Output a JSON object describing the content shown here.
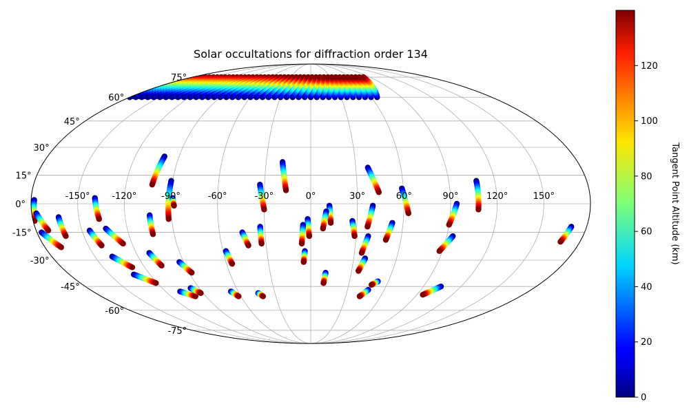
{
  "chart_data": {
    "type": "scatter",
    "projection": "mollweide",
    "title": "Solar occultations for diffraction order 134",
    "lon_ticks": [
      -150,
      -120,
      -90,
      -60,
      -30,
      0,
      30,
      60,
      90,
      120,
      150
    ],
    "lon_tick_labels": [
      "-150°",
      "-120°",
      "-90°",
      "-60°",
      "-30°",
      "0°",
      "30°",
      "60°",
      "90°",
      "120°",
      "150°"
    ],
    "lat_ticks": [
      -75,
      -60,
      -45,
      -30,
      -15,
      0,
      15,
      30,
      45,
      60,
      75
    ],
    "lat_tick_labels": [
      "-75°",
      "-60°",
      "-45°",
      "-30°",
      "-15°",
      "0°",
      "15°",
      "30°",
      "45°",
      "60°",
      "75°"
    ],
    "grid": true,
    "colorbar": {
      "label": "Tangent Point Altitude (km)",
      "colormap": "jet",
      "range": [
        0,
        140
      ],
      "ticks": [
        0,
        20,
        40,
        60,
        80,
        100,
        120
      ],
      "tick_labels": [
        "0",
        "20",
        "40",
        "60",
        "80",
        "100",
        "120"
      ]
    },
    "altitude_range_per_track_km": [
      0,
      140
    ],
    "tracks": [
      {
        "start": [
          -178,
          2
        ],
        "end": [
          -179,
          -9
        ]
      },
      {
        "start": [
          -177,
          -5
        ],
        "end": [
          -172,
          -14
        ]
      },
      {
        "start": [
          -177,
          -15
        ],
        "end": [
          -169,
          -23
        ]
      },
      {
        "start": [
          -163,
          -7
        ],
        "end": [
          -162,
          -17
        ]
      },
      {
        "start": [
          -139,
          3
        ],
        "end": [
          -137,
          -8
        ]
      },
      {
        "start": [
          -145,
          -14
        ],
        "end": [
          -141,
          -22
        ]
      },
      {
        "start": [
          -134,
          -13
        ],
        "end": [
          -126,
          -21
        ]
      },
      {
        "start": [
          -138,
          -28
        ],
        "end": [
          -129,
          -34
        ]
      },
      {
        "start": [
          -132,
          -38
        ],
        "end": [
          -121,
          -43
        ]
      },
      {
        "start": [
          -111,
          -26
        ],
        "end": [
          -107,
          -33
        ]
      },
      {
        "start": [
          -108,
          -48
        ],
        "end": [
          -99,
          -51
        ]
      },
      {
        "start": [
          -104,
          -6
        ],
        "end": [
          -104,
          -16
        ]
      },
      {
        "start": [
          -100,
          25
        ],
        "end": [
          -103,
          10
        ]
      },
      {
        "start": [
          -91,
          12
        ],
        "end": [
          -92,
          -8
        ]
      },
      {
        "start": [
          -89,
          3
        ],
        "end": [
          -88,
          -1
        ]
      },
      {
        "start": [
          -97,
          -46
        ],
        "end": [
          -92,
          -49
        ]
      },
      {
        "start": [
          -93,
          -31
        ],
        "end": [
          -88,
          -37
        ]
      },
      {
        "start": [
          -58,
          -25
        ],
        "end": [
          -56,
          -32
        ]
      },
      {
        "start": [
          -66,
          -48
        ],
        "end": [
          -62,
          -51
        ]
      },
      {
        "start": [
          -45,
          -15
        ],
        "end": [
          -42,
          -22
        ]
      },
      {
        "start": [
          -44,
          -49
        ],
        "end": [
          -41,
          -51
        ]
      },
      {
        "start": [
          -33,
          10
        ],
        "end": [
          -30,
          -3
        ]
      },
      {
        "start": [
          -33,
          -12
        ],
        "end": [
          -33,
          -21
        ]
      },
      {
        "start": [
          -19,
          22
        ],
        "end": [
          -16,
          7
        ]
      },
      {
        "start": [
          -2,
          -8
        ],
        "end": [
          -1,
          -17
        ]
      },
      {
        "start": [
          -5,
          -11
        ],
        "end": [
          -6,
          -21
        ]
      },
      {
        "start": [
          -4,
          -25
        ],
        "end": [
          -5,
          -31
        ]
      },
      {
        "start": [
          12,
          -1
        ],
        "end": [
          13,
          -10
        ]
      },
      {
        "start": [
          10,
          -4
        ],
        "end": [
          8,
          -13
        ]
      },
      {
        "start": [
          11,
          -37
        ],
        "end": [
          10,
          -43
        ]
      },
      {
        "start": [
          27,
          -9
        ],
        "end": [
          29,
          -17
        ]
      },
      {
        "start": [
          40,
          -1
        ],
        "end": [
          37,
          -12
        ]
      },
      {
        "start": [
          38,
          19
        ],
        "end": [
          44,
          6
        ]
      },
      {
        "start": [
          38,
          -17
        ],
        "end": [
          35,
          -26
        ]
      },
      {
        "start": [
          38,
          -29
        ],
        "end": [
          35,
          -36
        ]
      },
      {
        "start": [
          53,
          -10
        ],
        "end": [
          50,
          -19
        ]
      },
      {
        "start": [
          59,
          8
        ],
        "end": [
          63,
          -5
        ]
      },
      {
        "start": [
          52,
          -42
        ],
        "end": [
          48,
          -44
        ]
      },
      {
        "start": [
          47,
          -47
        ],
        "end": [
          42,
          -51
        ]
      },
      {
        "start": [
          94,
          0
        ],
        "end": [
          90,
          -11
        ]
      },
      {
        "start": [
          94,
          -17
        ],
        "end": [
          88,
          -25
        ]
      },
      {
        "start": [
          108,
          12
        ],
        "end": [
          108,
          -3
        ]
      },
      {
        "start": [
          104,
          -45
        ],
        "end": [
          95,
          -50
        ]
      },
      {
        "start": [
          170,
          -12
        ],
        "end": [
          167,
          -20
        ]
      }
    ],
    "polar_band": {
      "lat_range": [
        60,
        75
      ],
      "lon_range": [
        -180,
        70
      ],
      "altitude_range_km": [
        0,
        140
      ]
    }
  }
}
